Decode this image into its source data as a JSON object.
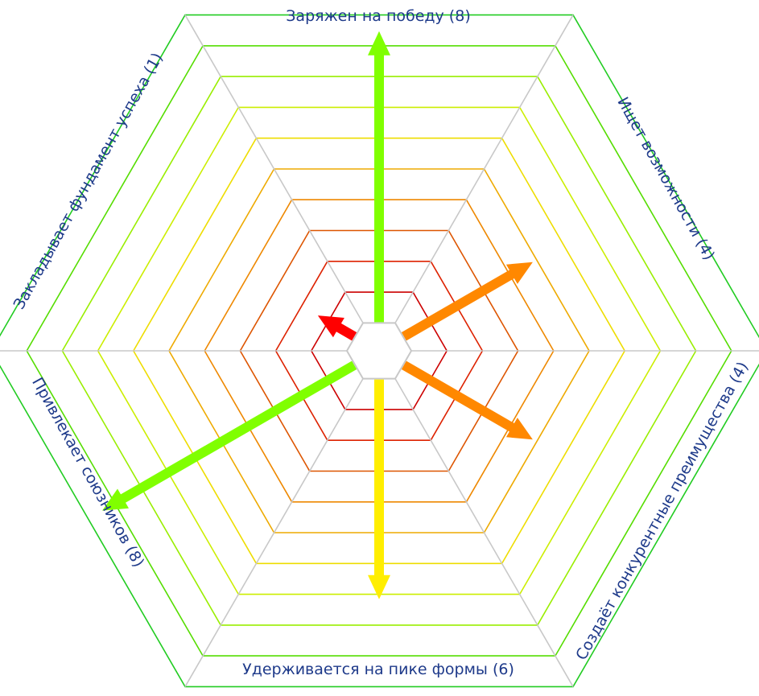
{
  "chart_data": {
    "type": "radar",
    "scale_max": 10,
    "axes": [
      {
        "label": "Заряжен на победу (8)",
        "value": 8,
        "color": "#80ff00"
      },
      {
        "label": "Ищет возможности (4)",
        "value": 4,
        "color": "#ff8800"
      },
      {
        "label": "Создаёт конкурентные преимущества (4)",
        "value": 4,
        "color": "#ff8800"
      },
      {
        "label": "Удерживается на пике формы (6)",
        "value": 6,
        "color": "#ffee00"
      },
      {
        "label": "Привлекает союзников (8)",
        "value": 8,
        "color": "#80ff00"
      },
      {
        "label": "Закладывает фундамент успеха (1)",
        "value": 1,
        "color": "#ff0000"
      }
    ],
    "ring_colors": [
      "#cc0000",
      "#dd2200",
      "#dd5500",
      "#ee8800",
      "#eeaa00",
      "#eedd00",
      "#ccee00",
      "#99ee00",
      "#55dd00",
      "#22cc22"
    ],
    "spoke_color": "#c8c8c8"
  }
}
